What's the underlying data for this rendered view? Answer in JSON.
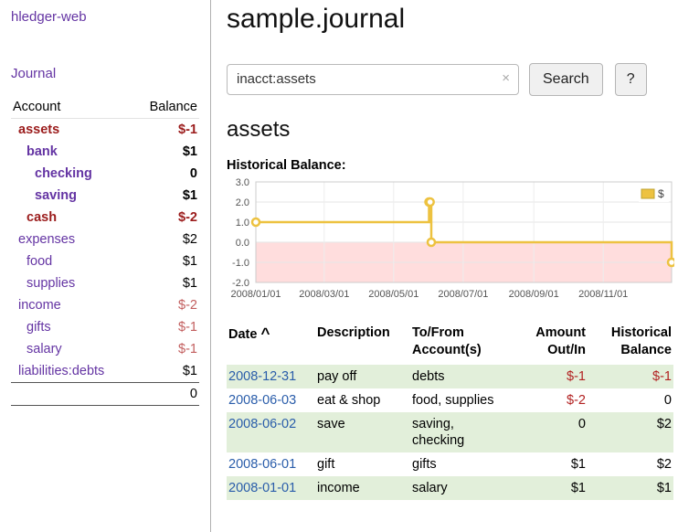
{
  "app": {
    "title": "hledger-web",
    "nav_journal": "Journal"
  },
  "colors": {
    "accent_purple": "#6434a3",
    "negative_strong": "#9b1c1c",
    "negative_soft": "#c25e5e",
    "table_negative": "#b22222",
    "date_link_blue": "#2a5daa",
    "row_green": "#e2efda",
    "series_gold": "#edc240",
    "negative_region_pink": "#ffdddd"
  },
  "sidebar": {
    "col_account": "Account",
    "col_balance": "Balance",
    "accounts": [
      {
        "name": "assets",
        "depth": 1,
        "bold": true,
        "neg": true,
        "balance": "$-1"
      },
      {
        "name": "bank",
        "depth": 2,
        "bold": true,
        "neg": false,
        "balance": "$1"
      },
      {
        "name": "checking",
        "depth": 3,
        "bold": true,
        "neg": false,
        "balance": "0"
      },
      {
        "name": "saving",
        "depth": 3,
        "bold": true,
        "neg": false,
        "balance": "$1"
      },
      {
        "name": "cash",
        "depth": 2,
        "bold": true,
        "neg": true,
        "balance": "$-2"
      },
      {
        "name": "expenses",
        "depth": 1,
        "bold": false,
        "neg": false,
        "balance": "$2"
      },
      {
        "name": "food",
        "depth": 2,
        "bold": false,
        "neg": false,
        "balance": "$1"
      },
      {
        "name": "supplies",
        "depth": 2,
        "bold": false,
        "neg": false,
        "balance": "$1"
      },
      {
        "name": "income",
        "depth": 1,
        "bold": false,
        "neg": true,
        "balance": "$-2"
      },
      {
        "name": "gifts",
        "depth": 2,
        "bold": false,
        "neg": true,
        "balance": "$-1"
      },
      {
        "name": "salary",
        "depth": 2,
        "bold": false,
        "neg": true,
        "balance": "$-1"
      },
      {
        "name": "liabilities:debts",
        "depth": 1,
        "bold": false,
        "neg": false,
        "balance": "$1"
      }
    ],
    "total": "0"
  },
  "main": {
    "title": "sample.journal",
    "search": {
      "value": "inacct:assets",
      "clear": "×",
      "button": "Search",
      "help": "?"
    },
    "account_heading": "assets"
  },
  "chart_data": {
    "type": "line",
    "step": true,
    "title": "Historical Balance:",
    "series": [
      {
        "name": "$",
        "color": "#edc240",
        "points": [
          [
            "2008-01-01",
            1
          ],
          [
            "2008-06-01",
            2
          ],
          [
            "2008-06-02",
            2
          ],
          [
            "2008-06-03",
            0
          ],
          [
            "2008-12-31",
            -1
          ]
        ]
      }
    ],
    "ylim": [
      -2,
      3
    ],
    "yticks": [
      "3.0",
      "2.0",
      "1.0",
      "0.0",
      "-1.0",
      "-2.0"
    ],
    "xticks": [
      "2008/01/01",
      "2008/03/01",
      "2008/05/01",
      "2008/07/01",
      "2008/09/01",
      "2008/11/01"
    ],
    "xrange": [
      "2008-01-01",
      "2008-12-31"
    ],
    "negative_region_fill": "#ffdddd",
    "grid": true,
    "legend": {
      "label": "$",
      "position": "top-right"
    }
  },
  "register": {
    "headers": {
      "date": "Date",
      "sort_icon": "^",
      "description": "Description",
      "tofrom1": "To/From",
      "tofrom2": "Account(s)",
      "amount1": "Amount",
      "amount2": "Out/In",
      "hist1": "Historical",
      "hist2": "Balance"
    },
    "rows": [
      {
        "date": "2008-12-31",
        "description": "pay off",
        "accounts": [
          "debts"
        ],
        "amount": "$-1",
        "amount_neg": true,
        "balance": "$-1",
        "balance_neg": true
      },
      {
        "date": "2008-06-03",
        "description": "eat & shop",
        "accounts": [
          "food, supplies"
        ],
        "amount": "$-2",
        "amount_neg": true,
        "balance": "0",
        "balance_neg": false
      },
      {
        "date": "2008-06-02",
        "description": "save",
        "accounts": [
          "saving,",
          "checking"
        ],
        "amount": "0",
        "amount_neg": false,
        "balance": "$2",
        "balance_neg": false
      },
      {
        "date": "2008-06-01",
        "description": "gift",
        "accounts": [
          "gifts"
        ],
        "amount": "$1",
        "amount_neg": false,
        "balance": "$2",
        "balance_neg": false
      },
      {
        "date": "2008-01-01",
        "description": "income",
        "accounts": [
          "salary"
        ],
        "amount": "$1",
        "amount_neg": false,
        "balance": "$1",
        "balance_neg": false
      }
    ]
  }
}
